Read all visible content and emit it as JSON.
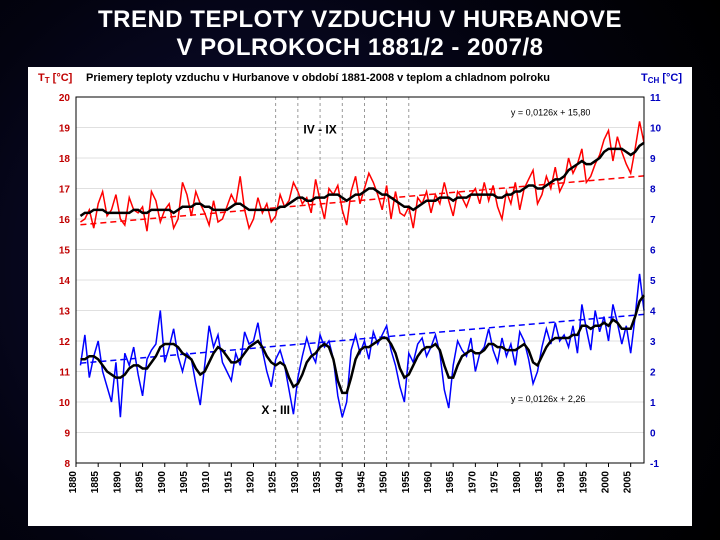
{
  "title_line1": "TREND TEPLOTY VZDUCHU V HURBANOVE",
  "title_line2": "V POLROKOCH 1881/2 - 2007/8",
  "chart": {
    "type": "line",
    "subtitle": "Priemery teploty vzduchu v Hurbanove v období 1881-2008 v teplom a chladnom polroku",
    "background_color": "#ffffff",
    "y_left": {
      "label": "T_T [°C]",
      "label_color": "#c00000",
      "min": 8,
      "max": 20,
      "step": 1
    },
    "y_right": {
      "label": "T_CH [°C]",
      "label_color": "#0000c0",
      "min": -1,
      "max": 11,
      "step": 1
    },
    "x": {
      "min": 1880,
      "max": 2008,
      "tick_start": 1880,
      "tick_step": 5,
      "tick_end": 2005,
      "rot": -90
    },
    "grid_color": "#c0c0c0",
    "vslice_years": [
      1925,
      1930,
      1935,
      1940,
      1945,
      1950,
      1955
    ],
    "series": {
      "warm": {
        "label": "IV - IX",
        "label_x": 1935,
        "label_color": "#000000",
        "color": "#ff0000",
        "line_width": 1.5,
        "trend": {
          "slope": 0.0126,
          "intercept": 15.8,
          "dash": "6 4",
          "label": "y = 0,0126x + 15,80",
          "label_x": 1978,
          "label_y": 19.4
        },
        "smooth_color": "#000000",
        "smooth_width": 2.5,
        "years_start": 1881,
        "values": [
          15.9,
          16.0,
          16.3,
          15.7,
          16.5,
          16.9,
          16.1,
          16.3,
          16.8,
          16.0,
          15.8,
          16.7,
          16.3,
          16.2,
          16.4,
          15.6,
          16.9,
          16.6,
          15.9,
          16.3,
          16.5,
          15.7,
          16.0,
          17.2,
          16.8,
          16.1,
          16.9,
          16.5,
          16.2,
          15.8,
          16.6,
          15.9,
          16.0,
          16.4,
          16.8,
          16.5,
          17.4,
          16.3,
          15.7,
          16.0,
          16.7,
          16.2,
          16.5,
          15.9,
          16.1,
          16.8,
          16.4,
          16.6,
          17.2,
          16.9,
          16.5,
          16.7,
          16.2,
          17.3,
          16.6,
          16.0,
          17.0,
          16.8,
          17.1,
          16.3,
          15.8,
          16.9,
          17.4,
          16.5,
          17.0,
          17.5,
          17.2,
          16.8,
          16.3,
          17.1,
          16.0,
          16.9,
          16.2,
          16.1,
          16.4,
          15.7,
          16.7,
          16.5,
          16.9,
          16.2,
          16.8,
          16.5,
          17.2,
          16.6,
          16.1,
          16.9,
          16.7,
          16.4,
          16.8,
          17.0,
          16.5,
          17.2,
          16.6,
          17.1,
          16.4,
          16.0,
          16.9,
          16.5,
          17.2,
          16.3,
          17.0,
          17.3,
          17.6,
          16.5,
          16.8,
          17.4,
          17.0,
          17.7,
          16.9,
          17.2,
          18.0,
          17.5,
          17.8,
          18.3,
          17.2,
          17.4,
          17.8,
          18.1,
          18.6,
          18.9,
          17.9,
          18.7,
          18.2,
          17.8,
          17.5,
          18.3,
          19.2,
          18.5
        ],
        "smooth": [
          16.1,
          16.2,
          16.2,
          16.3,
          16.3,
          16.3,
          16.2,
          16.2,
          16.2,
          16.2,
          16.2,
          16.2,
          16.3,
          16.3,
          16.2,
          16.2,
          16.3,
          16.3,
          16.3,
          16.3,
          16.3,
          16.2,
          16.3,
          16.4,
          16.4,
          16.4,
          16.5,
          16.5,
          16.4,
          16.4,
          16.3,
          16.3,
          16.3,
          16.3,
          16.4,
          16.5,
          16.5,
          16.4,
          16.3,
          16.3,
          16.3,
          16.3,
          16.3,
          16.3,
          16.3,
          16.4,
          16.4,
          16.5,
          16.6,
          16.7,
          16.7,
          16.6,
          16.6,
          16.7,
          16.7,
          16.7,
          16.8,
          16.8,
          16.8,
          16.7,
          16.6,
          16.7,
          16.8,
          16.8,
          16.9,
          17.0,
          17.0,
          16.9,
          16.8,
          16.8,
          16.7,
          16.6,
          16.5,
          16.4,
          16.4,
          16.3,
          16.4,
          16.5,
          16.6,
          16.6,
          16.6,
          16.7,
          16.7,
          16.7,
          16.6,
          16.7,
          16.7,
          16.7,
          16.8,
          16.8,
          16.8,
          16.8,
          16.8,
          16.8,
          16.7,
          16.7,
          16.8,
          16.8,
          16.9,
          16.9,
          17.0,
          17.1,
          17.1,
          17.0,
          17.0,
          17.1,
          17.2,
          17.3,
          17.3,
          17.4,
          17.6,
          17.7,
          17.8,
          17.9,
          17.8,
          17.8,
          17.9,
          18.0,
          18.2,
          18.3,
          18.3,
          18.3,
          18.3,
          18.2,
          18.1,
          18.2,
          18.4,
          18.5
        ]
      },
      "cold": {
        "label": "X - III",
        "label_x": 1925,
        "label_color": "#000000",
        "color": "#0000ff",
        "line_width": 1.5,
        "trend": {
          "slope": 0.0126,
          "intercept": 2.26,
          "dash": "6 4",
          "label": "y = 0,0126x + 2,26",
          "label_x": 1978,
          "label_y": 1.0
        },
        "smooth_color": "#000000",
        "smooth_width": 2.5,
        "years_start": 1881,
        "values": [
          2.2,
          3.2,
          1.8,
          2.5,
          3.0,
          2.0,
          1.5,
          1.0,
          2.3,
          0.5,
          2.6,
          2.2,
          2.8,
          1.9,
          1.2,
          2.4,
          2.7,
          2.9,
          4.0,
          2.3,
          2.8,
          3.4,
          2.5,
          2.0,
          2.6,
          2.4,
          1.6,
          0.9,
          2.2,
          3.5,
          2.8,
          3.2,
          2.3,
          2.0,
          1.7,
          2.6,
          2.2,
          3.3,
          2.9,
          3.0,
          3.6,
          2.7,
          2.0,
          1.5,
          2.4,
          2.7,
          2.2,
          1.4,
          0.6,
          1.8,
          2.5,
          3.1,
          2.6,
          2.3,
          3.2,
          2.8,
          3.0,
          2.4,
          1.2,
          0.5,
          1.0,
          2.7,
          3.2,
          2.6,
          3.0,
          2.4,
          3.3,
          2.9,
          3.2,
          3.5,
          2.7,
          2.2,
          1.5,
          1.0,
          2.6,
          2.3,
          2.9,
          3.1,
          2.5,
          2.8,
          3.2,
          2.6,
          1.4,
          0.8,
          2.2,
          3.0,
          2.7,
          2.5,
          3.1,
          2.0,
          2.6,
          2.8,
          3.4,
          2.7,
          2.3,
          3.1,
          2.5,
          2.9,
          2.2,
          3.3,
          3.0,
          2.4,
          1.6,
          2.0,
          2.8,
          3.4,
          2.9,
          3.6,
          3.0,
          3.2,
          2.8,
          3.5,
          2.6,
          4.2,
          3.4,
          2.7,
          4.0,
          3.3,
          3.8,
          3.0,
          4.2,
          3.6,
          2.9,
          3.5,
          2.6,
          3.8,
          5.2,
          4.0
        ],
        "smooth": [
          2.4,
          2.4,
          2.5,
          2.5,
          2.4,
          2.2,
          2.0,
          1.9,
          1.8,
          1.8,
          1.9,
          2.1,
          2.2,
          2.2,
          2.1,
          2.1,
          2.3,
          2.5,
          2.8,
          2.9,
          2.9,
          2.9,
          2.8,
          2.6,
          2.5,
          2.4,
          2.1,
          1.9,
          2.0,
          2.3,
          2.6,
          2.8,
          2.7,
          2.5,
          2.3,
          2.3,
          2.4,
          2.6,
          2.8,
          2.9,
          3.0,
          2.8,
          2.5,
          2.3,
          2.2,
          2.3,
          2.2,
          1.8,
          1.5,
          1.6,
          1.9,
          2.3,
          2.5,
          2.6,
          2.8,
          2.9,
          2.8,
          2.4,
          1.7,
          1.3,
          1.3,
          1.8,
          2.4,
          2.7,
          2.8,
          2.8,
          2.9,
          3.0,
          3.1,
          3.1,
          2.9,
          2.6,
          2.1,
          1.8,
          1.9,
          2.2,
          2.5,
          2.7,
          2.8,
          2.8,
          2.9,
          2.7,
          2.2,
          1.8,
          1.8,
          2.2,
          2.5,
          2.6,
          2.7,
          2.6,
          2.6,
          2.7,
          2.9,
          2.9,
          2.8,
          2.8,
          2.7,
          2.7,
          2.7,
          2.8,
          2.9,
          2.7,
          2.3,
          2.2,
          2.5,
          2.8,
          3.0,
          3.1,
          3.1,
          3.1,
          3.1,
          3.2,
          3.2,
          3.5,
          3.5,
          3.4,
          3.5,
          3.5,
          3.6,
          3.5,
          3.7,
          3.6,
          3.4,
          3.4,
          3.4,
          3.8,
          4.3,
          4.5
        ]
      }
    }
  }
}
